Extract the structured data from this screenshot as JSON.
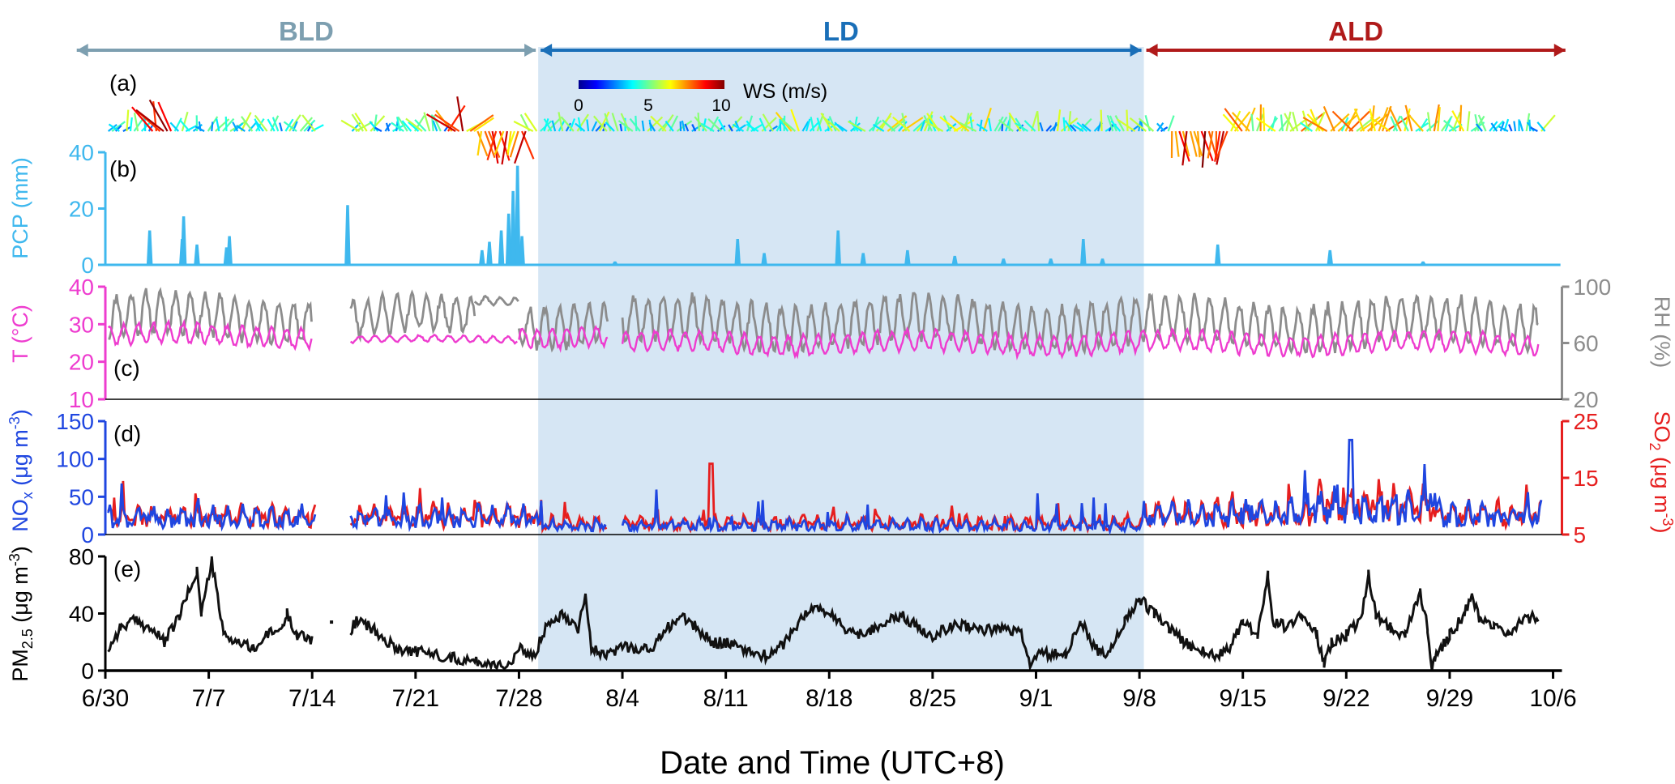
{
  "periods": [
    {
      "label": "BLD",
      "color": "#7d9fb0"
    },
    {
      "label": "LD",
      "color": "#1a6fb8"
    },
    {
      "label": "ALD",
      "color": "#b01a1a"
    }
  ],
  "xlabel": "Date and Time (UTC+8)",
  "xticks": [
    "6/30",
    "7/7",
    "7/14",
    "7/21",
    "7/28",
    "8/4",
    "8/11",
    "8/18",
    "8/25",
    "9/1",
    "9/8",
    "9/15",
    "9/22",
    "9/29",
    "10/6"
  ],
  "colors": {
    "pcp": "#3fb8ee",
    "temp": "#ee3ccf",
    "rh": "#8c8c8c",
    "nox": "#1f46e0",
    "so2": "#e61e1e",
    "pm": "#111111",
    "ld_shade": "#d6e6f4"
  },
  "panels": {
    "a": {
      "tag": "(a)",
      "colorbar_label": "WS (m/s)",
      "colorbar_ticks": [
        "0",
        "5",
        "10"
      ]
    },
    "b": {
      "tag": "(b)",
      "ylabel": "PCP (mm)",
      "yticks": [
        "0",
        "20",
        "40"
      ]
    },
    "c": {
      "tag": "(c)",
      "ylabel_left": "T (°C)",
      "ylabel_right": "RH (%)",
      "yticks_left": [
        "10",
        "20",
        "30",
        "40"
      ],
      "yticks_right": [
        "20",
        "60",
        "100"
      ]
    },
    "d": {
      "tag": "(d)",
      "ylabel_left": "NO",
      "ylabel_left_sub": "x",
      "ylabel_left_unit": " (μg m",
      "ylabel_left_sup": "-3",
      "ylabel_right": "SO",
      "ylabel_right_sub": "2",
      "ylabel_right_unit": " (μg m",
      "ylabel_right_sup": "-3",
      "yticks_left": [
        "0",
        "50",
        "100",
        "150"
      ],
      "yticks_right": [
        "5",
        "15",
        "25"
      ]
    },
    "e": {
      "tag": "(e)",
      "ylabel": "PM",
      "ylabel_sub": "2.5",
      "ylabel_unit": " (μg m",
      "ylabel_sup": "-3",
      "yticks": [
        "0",
        "40",
        "80"
      ]
    }
  },
  "chart_data": {
    "type": "line",
    "x_unit": "day index (0 = 6/30)",
    "x_range": [
      0,
      98.5
    ],
    "periods": [
      {
        "name": "BLD",
        "start": "6/30",
        "end": "7/29"
      },
      {
        "name": "LD",
        "start": "7/29",
        "end": "9/8"
      },
      {
        "name": "ALD",
        "start": "9/8",
        "end": "10/6"
      }
    ],
    "precipitation": {
      "name": "PCP (mm)",
      "ylim": [
        0,
        40
      ],
      "events": [
        [
          3,
          12
        ],
        [
          5.2,
          9
        ],
        [
          5.3,
          17
        ],
        [
          6.2,
          7
        ],
        [
          8.2,
          6
        ],
        [
          8.4,
          10
        ],
        [
          16.4,
          21
        ],
        [
          25.5,
          5
        ],
        [
          26,
          8
        ],
        [
          26.8,
          12
        ],
        [
          27.3,
          18
        ],
        [
          27.6,
          26
        ],
        [
          27.9,
          35
        ],
        [
          28.2,
          10
        ],
        [
          34.5,
          1
        ],
        [
          42.8,
          9
        ],
        [
          44.6,
          4
        ],
        [
          49.6,
          12
        ],
        [
          51.3,
          4
        ],
        [
          54.3,
          5
        ],
        [
          57.5,
          3
        ],
        [
          60.8,
          2
        ],
        [
          64,
          2
        ],
        [
          66.2,
          9
        ],
        [
          67.5,
          2
        ],
        [
          75.3,
          7
        ],
        [
          82.9,
          5
        ],
        [
          89.2,
          1
        ]
      ]
    },
    "temperature": {
      "name": "T (°C)",
      "ylim": [
        10,
        40
      ],
      "segments": [
        {
          "start": 0.2,
          "end": 14,
          "base": 27,
          "amp": 2.5
        },
        {
          "start": 16.6,
          "end": 27.9,
          "base": 26,
          "amp": 0.8
        },
        {
          "start": 28,
          "end": 34,
          "base": 27,
          "amp": 2.5
        },
        {
          "start": 35,
          "end": 97,
          "base": 25,
          "amp": 2.5
        }
      ]
    },
    "relative_humidity": {
      "name": "RH (%)",
      "ylim": [
        20,
        100
      ],
      "segments": [
        {
          "start": 0.2,
          "end": 14,
          "base": 78,
          "amp": 14
        },
        {
          "start": 16.6,
          "end": 25,
          "base": 78,
          "amp": 12
        },
        {
          "start": 25,
          "end": 28,
          "base": 90,
          "amp": 3
        },
        {
          "start": 28,
          "end": 34,
          "base": 75,
          "amp": 14
        },
        {
          "start": 35,
          "end": 97,
          "base": 74,
          "amp": 15
        }
      ]
    },
    "nox": {
      "name": "NOx (μg m-3)",
      "ylim": [
        0,
        150
      ],
      "mean_bld": 30,
      "mean_ld": 15,
      "mean_ald": 40,
      "max": 125,
      "max_day": 84.3
    },
    "so2": {
      "name": "SO2 (μg m-3)",
      "ylim": [
        5,
        25
      ],
      "baseline": 8,
      "max": 17.5,
      "max_day": 41
    },
    "pm25": {
      "name": "PM2.5 (μg m-3)",
      "ylim": [
        0,
        80
      ],
      "keypoints": [
        [
          0.2,
          15
        ],
        [
          1,
          30
        ],
        [
          2,
          35
        ],
        [
          3,
          30
        ],
        [
          4,
          20
        ],
        [
          5,
          38
        ],
        [
          6.2,
          70
        ],
        [
          6.5,
          40
        ],
        [
          7.2,
          77
        ],
        [
          8,
          25
        ],
        [
          9,
          20
        ],
        [
          10,
          15
        ],
        [
          11,
          25
        ],
        [
          12,
          30
        ],
        [
          12.3,
          40
        ],
        [
          13,
          25
        ],
        [
          14,
          22
        ],
        [
          16.6,
          28
        ],
        [
          17,
          35
        ],
        [
          18,
          30
        ],
        [
          19,
          20
        ],
        [
          20,
          15
        ],
        [
          22,
          12
        ],
        [
          24,
          8
        ],
        [
          26,
          5
        ],
        [
          27.5,
          4
        ],
        [
          28,
          15
        ],
        [
          29,
          10
        ],
        [
          30,
          35
        ],
        [
          31,
          40
        ],
        [
          32,
          30
        ],
        [
          32.5,
          55
        ],
        [
          32.9,
          15
        ],
        [
          34,
          10
        ],
        [
          35,
          18
        ],
        [
          36,
          15
        ],
        [
          37,
          15
        ],
        [
          38,
          30
        ],
        [
          39,
          38
        ],
        [
          40,
          30
        ],
        [
          41,
          20
        ],
        [
          42,
          20
        ],
        [
          43,
          15
        ],
        [
          44,
          12
        ],
        [
          45,
          10
        ],
        [
          46,
          20
        ],
        [
          47,
          35
        ],
        [
          48,
          45
        ],
        [
          49,
          40
        ],
        [
          50,
          30
        ],
        [
          51,
          25
        ],
        [
          52,
          30
        ],
        [
          53,
          35
        ],
        [
          54,
          38
        ],
        [
          55,
          30
        ],
        [
          56,
          25
        ],
        [
          57,
          30
        ],
        [
          58,
          32
        ],
        [
          59,
          30
        ],
        [
          60,
          28
        ],
        [
          61,
          30
        ],
        [
          62,
          25
        ],
        [
          62.6,
          5
        ],
        [
          63,
          10
        ],
        [
          64,
          12
        ],
        [
          65,
          10
        ],
        [
          66,
          35
        ],
        [
          67,
          15
        ],
        [
          68,
          12
        ],
        [
          69,
          35
        ],
        [
          70,
          50
        ],
        [
          71,
          40
        ],
        [
          72,
          30
        ],
        [
          73,
          20
        ],
        [
          74,
          15
        ],
        [
          75,
          10
        ],
        [
          76,
          15
        ],
        [
          77,
          35
        ],
        [
          78,
          25
        ],
        [
          78.7,
          68
        ],
        [
          79,
          35
        ],
        [
          80,
          30
        ],
        [
          81,
          40
        ],
        [
          82,
          25
        ],
        [
          82.5,
          5
        ],
        [
          83,
          20
        ],
        [
          84,
          25
        ],
        [
          85,
          35
        ],
        [
          85.5,
          68
        ],
        [
          86,
          40
        ],
        [
          87,
          30
        ],
        [
          88,
          25
        ],
        [
          89,
          55
        ],
        [
          89.5,
          30
        ],
        [
          89.8,
          0
        ],
        [
          90,
          10
        ],
        [
          91,
          25
        ],
        [
          92,
          40
        ],
        [
          92.5,
          55
        ],
        [
          93,
          35
        ],
        [
          94,
          30
        ],
        [
          95,
          25
        ],
        [
          96,
          35
        ],
        [
          97,
          38
        ]
      ]
    },
    "wind_speed": {
      "name": "WS (m/s)",
      "range": [
        0,
        10
      ]
    }
  }
}
